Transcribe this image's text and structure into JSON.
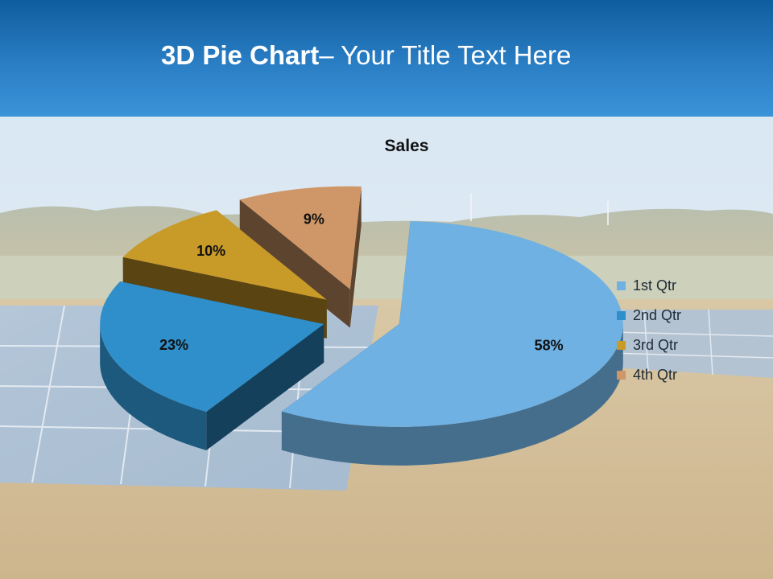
{
  "slide": {
    "title_bold": "3D Pie Chart",
    "title_rest": "– Your Title Text Here"
  },
  "chart_data": {
    "type": "pie",
    "title": "Sales",
    "categories": [
      "1st Qtr",
      "2nd Qtr",
      "3rd Qtr",
      "4th Qtr"
    ],
    "values": [
      58,
      23,
      10,
      9
    ],
    "labels": [
      "58%",
      "23%",
      "10%",
      "9%"
    ],
    "colors": [
      "#6fb1e3",
      "#2f8fca",
      "#c89a28",
      "#cf9767"
    ],
    "legend_position": "right",
    "exploded": true,
    "three_d": true
  }
}
